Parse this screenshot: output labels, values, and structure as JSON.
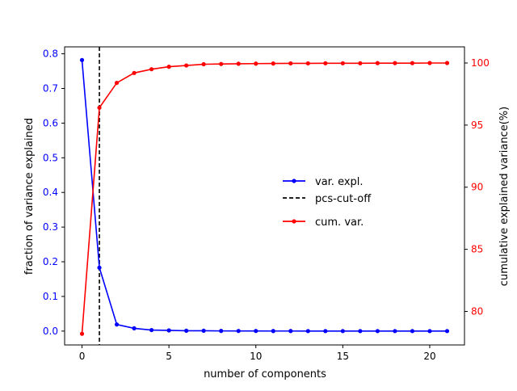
{
  "chart_data": {
    "type": "line",
    "title": "",
    "xlabel": "number of components",
    "ylabel_left": "fraction of variance explained",
    "ylabel_right": "cumulative explained variance(%)",
    "xlim": [
      -1,
      22
    ],
    "ylim_left": [
      -0.04,
      0.82
    ],
    "ylim_right": [
      77.3,
      101.3
    ],
    "x_ticks": [
      0,
      5,
      10,
      15,
      20
    ],
    "y_left_ticks": [
      0.0,
      0.1,
      0.2,
      0.3,
      0.4,
      0.5,
      0.6,
      0.7,
      0.8
    ],
    "y_right_ticks": [
      80,
      85,
      90,
      95,
      100
    ],
    "grid": false,
    "legend_position": "center-right",
    "cutoff_x": 1,
    "series": [
      {
        "name": "var. expl.",
        "axis": "left",
        "color": "#0000ff",
        "marker": "dot",
        "x": [
          0,
          1,
          2,
          3,
          4,
          5,
          6,
          7,
          8,
          9,
          10,
          11,
          12,
          13,
          14,
          15,
          16,
          17,
          18,
          19,
          20,
          21
        ],
        "values": [
          0.782,
          0.183,
          0.019,
          0.008,
          0.003,
          0.002,
          0.001,
          0.001,
          0.0005,
          0.0004,
          0.0003,
          0.0002,
          0.0002,
          0.0001,
          0.0001,
          0.0001,
          0.0001,
          0.0001,
          0.0001,
          0.0,
          0.0,
          0.0
        ]
      },
      {
        "name": "pcs-cut-off",
        "axis": "left",
        "color": "#000000",
        "style": "dashed"
      },
      {
        "name": "cum. var.",
        "axis": "right",
        "color": "#ff0000",
        "marker": "dot",
        "x": [
          0,
          1,
          2,
          3,
          4,
          5,
          6,
          7,
          8,
          9,
          10,
          11,
          12,
          13,
          14,
          15,
          16,
          17,
          18,
          19,
          20,
          21
        ],
        "values": [
          78.2,
          96.4,
          98.4,
          99.2,
          99.5,
          99.7,
          99.8,
          99.9,
          99.92,
          99.94,
          99.95,
          99.96,
          99.97,
          99.97,
          99.98,
          99.98,
          99.98,
          99.99,
          99.99,
          99.99,
          100.0,
          100.0
        ]
      }
    ]
  }
}
